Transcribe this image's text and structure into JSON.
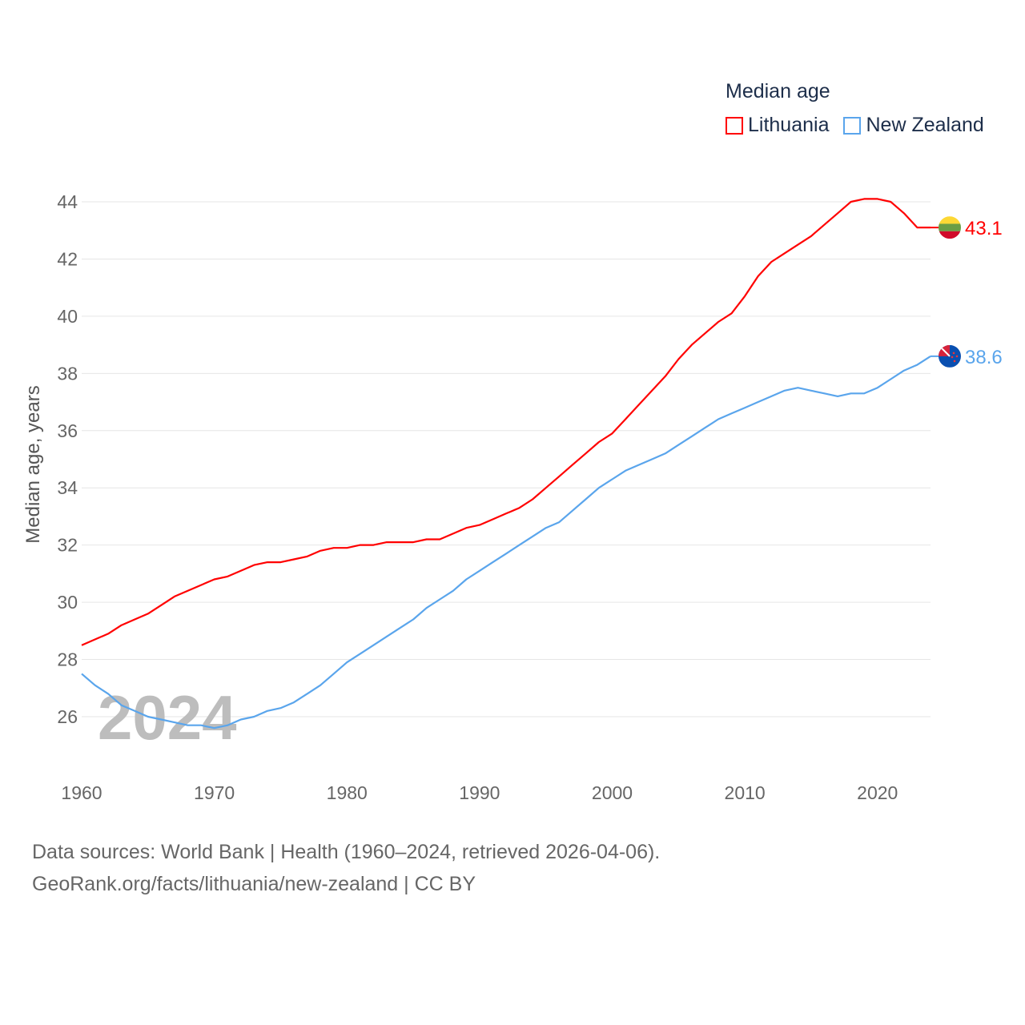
{
  "chart_data": {
    "type": "line",
    "title": "Median age",
    "ylabel": "Median age, years",
    "xlabel": "",
    "xlim": [
      1960,
      2024
    ],
    "ylim": [
      25,
      44.5
    ],
    "yticks": [
      26,
      28,
      30,
      32,
      34,
      36,
      38,
      40,
      42,
      44
    ],
    "xticks": [
      1960,
      1970,
      1980,
      1990,
      2000,
      2010,
      2020
    ],
    "grid": true,
    "legend_position": "top-right",
    "watermark": "2024",
    "x": [
      1960,
      1961,
      1962,
      1963,
      1964,
      1965,
      1966,
      1967,
      1968,
      1969,
      1970,
      1971,
      1972,
      1973,
      1974,
      1975,
      1976,
      1977,
      1978,
      1979,
      1980,
      1981,
      1982,
      1983,
      1984,
      1985,
      1986,
      1987,
      1988,
      1989,
      1990,
      1991,
      1992,
      1993,
      1994,
      1995,
      1996,
      1997,
      1998,
      1999,
      2000,
      2001,
      2002,
      2003,
      2004,
      2005,
      2006,
      2007,
      2008,
      2009,
      2010,
      2011,
      2012,
      2013,
      2014,
      2015,
      2016,
      2017,
      2018,
      2019,
      2020,
      2021,
      2022,
      2023,
      2024
    ],
    "series": [
      {
        "name": "Lithuania",
        "color": "#ff0000",
        "end_label": "43.1",
        "values": [
          28.5,
          28.7,
          28.9,
          29.2,
          29.4,
          29.6,
          29.9,
          30.2,
          30.4,
          30.6,
          30.8,
          30.9,
          31.1,
          31.3,
          31.4,
          31.4,
          31.5,
          31.6,
          31.8,
          31.9,
          31.9,
          32.0,
          32.0,
          32.1,
          32.1,
          32.1,
          32.2,
          32.2,
          32.4,
          32.6,
          32.7,
          32.9,
          33.1,
          33.3,
          33.6,
          34.0,
          34.4,
          34.8,
          35.2,
          35.6,
          35.9,
          36.4,
          36.9,
          37.4,
          37.9,
          38.5,
          39.0,
          39.4,
          39.8,
          40.1,
          40.7,
          41.4,
          41.9,
          42.2,
          42.5,
          42.8,
          43.2,
          43.6,
          44.0,
          44.1,
          44.1,
          44.0,
          43.6,
          43.1,
          43.1
        ]
      },
      {
        "name": "New Zealand",
        "color": "#5aa5ec",
        "end_label": "38.6",
        "values": [
          27.5,
          27.1,
          26.8,
          26.4,
          26.2,
          26.0,
          25.9,
          25.8,
          25.7,
          25.7,
          25.6,
          25.7,
          25.9,
          26.0,
          26.2,
          26.3,
          26.5,
          26.8,
          27.1,
          27.5,
          27.9,
          28.2,
          28.5,
          28.8,
          29.1,
          29.4,
          29.8,
          30.1,
          30.4,
          30.8,
          31.1,
          31.4,
          31.7,
          32.0,
          32.3,
          32.6,
          32.8,
          33.2,
          33.6,
          34.0,
          34.3,
          34.6,
          34.8,
          35.0,
          35.2,
          35.5,
          35.8,
          36.1,
          36.4,
          36.6,
          36.8,
          37.0,
          37.2,
          37.4,
          37.5,
          37.4,
          37.3,
          37.2,
          37.3,
          37.3,
          37.5,
          37.8,
          38.1,
          38.3,
          38.6
        ]
      }
    ]
  },
  "footer": {
    "line1": "Data sources: World Bank | Health (1960–2024, retrieved 2026-04-06).",
    "line2": "GeoRank.org/facts/lithuania/new-zealand | CC BY"
  }
}
